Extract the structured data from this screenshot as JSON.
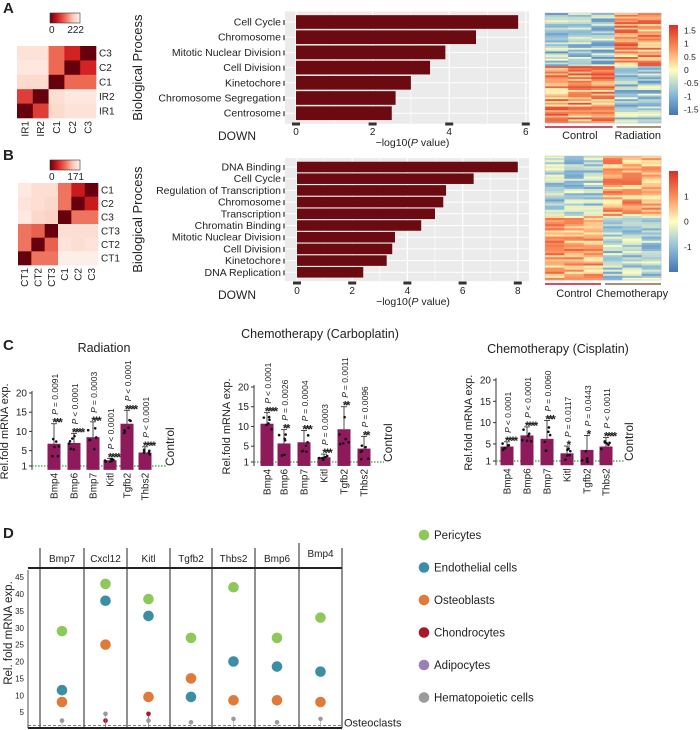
{
  "panel_labels": [
    "A",
    "B",
    "C",
    "D"
  ],
  "colors": {
    "go_bar": "#6b0a10",
    "go_panel_bg": "#ebebeb",
    "down_label": "#c0163a",
    "control_group": "#c0163a",
    "treatment_group": "#8b6a4a",
    "qpcr_bar": "#8e1a5c",
    "control_line": "#2e9e3e"
  },
  "chart_data": [
    {
      "type": "heatmap",
      "panel": "A",
      "scale_min": "0",
      "scale_max": "222",
      "rows": [
        "C3",
        "C2",
        "C1",
        "IR2",
        "IR1"
      ],
      "cols": [
        "IR1",
        "IR2",
        "C1",
        "C2",
        "C3"
      ],
      "values": [
        [
          200,
          200,
          110,
          60,
          0
        ],
        [
          205,
          205,
          110,
          0,
          60
        ],
        [
          190,
          190,
          0,
          110,
          110
        ],
        [
          80,
          0,
          195,
          205,
          205
        ],
        [
          0,
          80,
          190,
          200,
          200
        ]
      ]
    },
    {
      "type": "bar",
      "orientation": "horizontal",
      "panel": "A",
      "ylabel": "Biological Process",
      "xlabel_pre": "−log10(",
      "xlabel_italic": "P",
      "xlabel_post": " value)",
      "annotation": "DOWN",
      "categories": [
        "Cell Cycle",
        "Chromosome",
        "Mitotic Nuclear Division",
        "Cell Division",
        "Kinetochore",
        "Chromosome Segregation",
        "Centrosome"
      ],
      "values": [
        5.8,
        4.7,
        3.9,
        3.5,
        3.0,
        2.6,
        2.5
      ],
      "xlim": [
        0,
        6.1
      ],
      "xticks": [
        "0",
        "2",
        "4",
        "6"
      ],
      "grid": true
    },
    {
      "type": "heatmap",
      "panel": "A",
      "subtype": "expression",
      "groups": [
        "Control",
        "Radiation"
      ],
      "group_columns": [
        3,
        2
      ],
      "scale_ticks": [
        "1.5",
        "1",
        "0.5",
        "0",
        "-0.5",
        "-1",
        "-1.5"
      ],
      "scale_range": [
        -1.7,
        1.7
      ]
    },
    {
      "type": "heatmap",
      "panel": "B",
      "scale_min": "0",
      "scale_max": "171",
      "rows": [
        "C1",
        "C2",
        "C3",
        "CT3",
        "CT2",
        "CT1"
      ],
      "cols": [
        "CT1",
        "CT2",
        "CT3",
        "C1",
        "C2",
        "C3"
      ],
      "values": [
        [
          160,
          150,
          150,
          90,
          40,
          0
        ],
        [
          155,
          150,
          145,
          90,
          0,
          40
        ],
        [
          160,
          145,
          140,
          0,
          90,
          90
        ],
        [
          90,
          80,
          0,
          150,
          150,
          150
        ],
        [
          90,
          0,
          80,
          155,
          150,
          155
        ],
        [
          0,
          90,
          90,
          165,
          165,
          165
        ]
      ]
    },
    {
      "type": "bar",
      "orientation": "horizontal",
      "panel": "B",
      "ylabel": "Biological Process",
      "xlabel_pre": "−log10(",
      "xlabel_italic": "P",
      "xlabel_post": " value)",
      "annotation": "DOWN",
      "categories": [
        "DNA Binding",
        "Cell Cycle",
        "Regulation of Transcription",
        "Chromosome",
        "Transcription",
        "Chromatin Binding",
        "Mitotic Nuclear Division",
        "Cell Division",
        "Kinetochore",
        "DNA Replication"
      ],
      "values": [
        8.0,
        6.4,
        5.4,
        5.3,
        5.0,
        4.5,
        3.55,
        3.45,
        3.25,
        2.4
      ],
      "xlim": [
        0,
        8.4
      ],
      "xticks": [
        "0",
        "2",
        "4",
        "6",
        "8"
      ],
      "grid": true
    },
    {
      "type": "heatmap",
      "panel": "B",
      "subtype": "expression",
      "groups": [
        "Control",
        "Chemotherapy"
      ],
      "group_columns": [
        3,
        3
      ],
      "scale_ticks": [
        "1",
        "0",
        "-1"
      ],
      "scale_range": [
        -2,
        2
      ]
    },
    {
      "type": "bar",
      "panel": "C",
      "title": "Radiation",
      "ylabel": "Rel.fold mRNA exp.",
      "categories": [
        "Bmp4",
        "Bmp6",
        "Bmp7",
        "Kitl",
        "Tgfb2",
        "Thbs2"
      ],
      "values": [
        6.8,
        7.0,
        8.5,
        2.5,
        12.0,
        4.5
      ],
      "error_upper": [
        12.0,
        9.5,
        12.5,
        3.0,
        15.5,
        6.0
      ],
      "stars": [
        "***",
        "****",
        "***",
        "****",
        "****",
        "****"
      ],
      "p_prefix": "P",
      "p_values": [
        "= 0.0091",
        "< 0.0001",
        "= 0.0003",
        "< 0.0001",
        "< 0.0001",
        "< 0.0001"
      ],
      "yticks": [
        "1",
        "5",
        "10",
        "15",
        "20"
      ],
      "ylim": [
        0,
        20
      ],
      "reference": {
        "value": 1,
        "label": "Control"
      }
    },
    {
      "type": "bar",
      "panel": "C",
      "title": "Chemotherapy (Carboplatin)",
      "ylabel": "Rel.fold mRNA exp.",
      "categories": [
        "Bmp4",
        "Bmp6",
        "Bmp7",
        "Kitl",
        "Tgfb2",
        "Thbs2"
      ],
      "values": [
        10.7,
        5.7,
        6.0,
        2.2,
        9.3,
        4.4
      ],
      "error_upper": [
        13.5,
        9.2,
        9.0,
        3.0,
        15.0,
        7.5
      ],
      "stars": [
        "****",
        "**",
        "***",
        "***",
        "**",
        "**"
      ],
      "p_prefix": "P",
      "p_values": [
        "< 0.0001",
        "= 0.0026",
        "= 0.0004",
        "= 0.0003",
        "= 0.0011",
        "= 0.0096"
      ],
      "yticks": [
        "1",
        "5",
        "10",
        "15",
        "20"
      ],
      "ylim": [
        0,
        20
      ],
      "reference": {
        "value": 1,
        "label": "Control"
      }
    },
    {
      "type": "bar",
      "panel": "C",
      "title": "Chemotherapy (Cisplatin)",
      "ylabel": "Rel.fold mRNA exp.",
      "categories": [
        "Bmp4",
        "Bmp6",
        "Bmp7",
        "Kitl",
        "Tgfb2",
        "Thbs2"
      ],
      "values": [
        4.4,
        7.0,
        6.2,
        2.8,
        3.6,
        4.4
      ],
      "error_upper": [
        5.5,
        9.0,
        10.5,
        4.5,
        7.0,
        6.5
      ],
      "stars": [
        "****",
        "****",
        "***",
        "*",
        "*",
        "****"
      ],
      "p_prefix": "P",
      "p_values": [
        "< 0.0001",
        "< 0.0001",
        "= 0.0060",
        "= 0.0117",
        "= 0.0443",
        "< 0.0011"
      ],
      "yticks": [
        "1",
        "5",
        "10",
        "15",
        "20"
      ],
      "ylim": [
        0,
        20
      ],
      "reference": {
        "value": 1,
        "label": "Control"
      }
    },
    {
      "type": "scatter",
      "panel": "D",
      "ylabel": "Rel. fold mRNA exp.",
      "categories": [
        "Bmp7",
        "Cxcl12",
        "Kitl",
        "Tgfb2",
        "Thbs2",
        "Bmp6",
        "Bmp4"
      ],
      "yticks": [
        "5",
        "10",
        "15",
        "20",
        "25",
        "30",
        "35",
        "40",
        "45"
      ],
      "ylim": [
        0,
        47
      ],
      "reference": {
        "value": 1,
        "label": "Osteoclasts"
      },
      "legend_position": "right",
      "series": [
        {
          "name": "Pericytes",
          "color": "#8dc95a",
          "values": [
            29,
            43,
            38.5,
            27,
            42,
            27,
            33
          ]
        },
        {
          "name": "Endothelial cells",
          "color": "#3b8ea4",
          "values": [
            11.5,
            38,
            33.5,
            9.5,
            20,
            18.5,
            17
          ]
        },
        {
          "name": "Osteoblasts",
          "color": "#e07a38",
          "values": [
            8,
            25,
            9.5,
            15,
            8.5,
            8.5,
            8
          ]
        },
        {
          "name": "Chondrocytes",
          "color": "#a8162a",
          "values": [
            null,
            2.5,
            4.5,
            null,
            null,
            null,
            null
          ]
        },
        {
          "name": "Adipocytes",
          "color": "#9a80b8",
          "values": [
            null,
            null,
            null,
            null,
            null,
            null,
            null
          ]
        },
        {
          "name": "Hematopoietic cells",
          "color": "#9b9b9b",
          "values": [
            2.5,
            4.5,
            2.5,
            2,
            3,
            2,
            3
          ]
        }
      ]
    }
  ]
}
